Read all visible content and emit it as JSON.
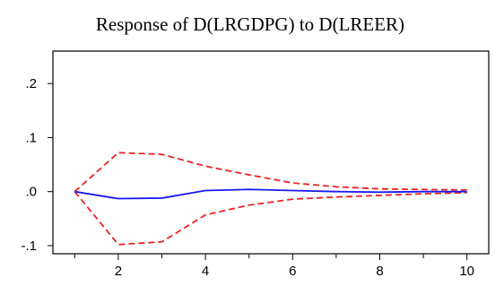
{
  "chart_data": {
    "type": "line",
    "title": "Response of D(LRGDPG) to D(LREER)",
    "xlabel": "",
    "ylabel": "",
    "x": [
      1,
      2,
      3,
      4,
      5,
      6,
      7,
      8,
      9,
      10
    ],
    "xlim": [
      0.5,
      10.5
    ],
    "ylim": [
      -0.115,
      0.26
    ],
    "x_ticks": [
      2,
      4,
      6,
      8,
      10
    ],
    "x_tick_labels": [
      "2",
      "4",
      "6",
      "8",
      "10"
    ],
    "y_ticks": [
      -0.1,
      0.0,
      0.1,
      0.2
    ],
    "y_tick_labels": [
      "-.1",
      ".0",
      ".1",
      ".2"
    ],
    "grid": false,
    "legend": "none",
    "series": [
      {
        "role": "response",
        "color": "#1a1aee",
        "style": "solid",
        "values": [
          0.0,
          -0.013,
          -0.012,
          0.002,
          0.004,
          0.002,
          0.0,
          -0.001,
          0.0,
          0.0
        ]
      },
      {
        "role": "upper-band",
        "color": "#ee2222",
        "style": "dashed",
        "values": [
          0.0,
          0.072,
          0.069,
          0.047,
          0.031,
          0.016,
          0.009,
          0.005,
          0.004,
          0.003
        ]
      },
      {
        "role": "lower-band",
        "color": "#ee2222",
        "style": "dashed",
        "values": [
          0.0,
          -0.098,
          -0.093,
          -0.043,
          -0.025,
          -0.014,
          -0.01,
          -0.007,
          -0.004,
          -0.002
        ]
      }
    ]
  }
}
